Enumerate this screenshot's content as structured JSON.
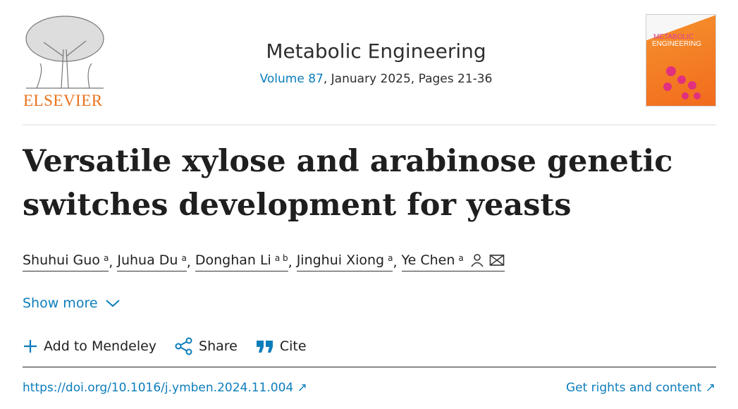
{
  "publisher": {
    "name": "ELSEVIER",
    "accent": "#e9711c"
  },
  "journal": {
    "name": "Metabolic Engineering",
    "volume_link": "Volume 87",
    "issue_rest": ", January 2025, Pages 21-36",
    "cover_text_1": "METABOLIC",
    "cover_text_2": "ENGINEERING"
  },
  "article": {
    "title": "Versatile xylose and arabinose genetic switches development for yeasts"
  },
  "authors": [
    {
      "name": "Shuhui Guo",
      "aff": "a"
    },
    {
      "name": "Juhua Du",
      "aff": "a"
    },
    {
      "name": "Donghan Li",
      "aff": "a b"
    },
    {
      "name": "Jinghui Xiong",
      "aff": "a"
    },
    {
      "name": "Ye Chen",
      "aff": "a"
    }
  ],
  "show_more": "Show more",
  "actions": {
    "mendeley": "Add to Mendeley",
    "share": "Share",
    "cite": "Cite"
  },
  "links": {
    "doi": "https://doi.org/10.1016/j.ymben.2024.11.004 ↗",
    "rights": "Get rights and content ↗"
  },
  "colors": {
    "link": "#0c7dbb"
  }
}
